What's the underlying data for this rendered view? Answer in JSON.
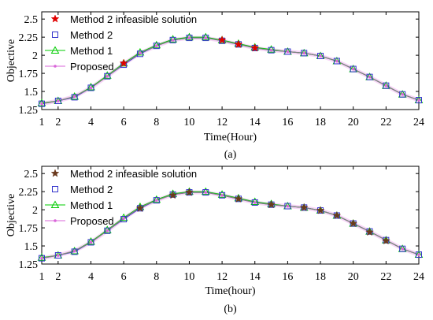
{
  "colors": {
    "method2_infeasible_top": "#e00000",
    "method2_infeasible_bottom": "#6b3a1e",
    "method2": "#3333cc",
    "method1": "#00cc00",
    "proposed": "#d966d9",
    "proposed_band": "#f3c4f3"
  },
  "chart_data": [
    {
      "type": "line",
      "caption": "(a)",
      "xlabel": "Time(Hour)",
      "ylabel": "Objective",
      "xlim": [
        1,
        24
      ],
      "ylim": [
        1.25,
        2.6
      ],
      "xticks": [
        1,
        2,
        4,
        6,
        8,
        10,
        12,
        14,
        16,
        18,
        20,
        22,
        24
      ],
      "xtick_labels": [
        "1",
        "2",
        "4",
        "6",
        "8",
        "10",
        "12",
        "14",
        "16",
        "18",
        "20",
        "22",
        "24"
      ],
      "yticks": [
        1.25,
        1.5,
        1.75,
        2,
        2.25,
        2.5
      ],
      "ytick_labels": [
        "1.25",
        "1.5",
        "1.75",
        "2",
        "2.25",
        "2.5"
      ],
      "grid": false,
      "legend_position": "top-left",
      "x": [
        1,
        2,
        3,
        4,
        5,
        6,
        7,
        8,
        9,
        10,
        11,
        12,
        13,
        14,
        15,
        16,
        17,
        18,
        19,
        20,
        21,
        22,
        23,
        24
      ],
      "series": [
        {
          "name": "Method 2 infeasible solution",
          "marker": "star",
          "color_key": "method2_infeasible_top",
          "points": [
            [
              6,
              1.89
            ],
            [
              12,
              2.21
            ],
            [
              13,
              2.15
            ],
            [
              14,
              2.1
            ]
          ]
        },
        {
          "name": "Method 2",
          "marker": "square",
          "color_key": "method2",
          "values": [
            1.33,
            1.37,
            1.42,
            1.55,
            1.71,
            1.87,
            2.02,
            2.13,
            2.21,
            2.24,
            2.24,
            2.2,
            2.15,
            2.1,
            2.07,
            2.05,
            2.03,
            1.99,
            1.92,
            1.81,
            1.7,
            1.58,
            1.46,
            1.38
          ]
        },
        {
          "name": "Method 1",
          "marker": "triangle",
          "color_key": "method1",
          "values": [
            1.34,
            1.37,
            1.43,
            1.56,
            1.72,
            1.89,
            2.04,
            2.14,
            2.22,
            2.25,
            2.25,
            2.21,
            2.16,
            2.11,
            2.08,
            2.05,
            2.03,
            1.99,
            1.92,
            1.81,
            1.7,
            1.58,
            1.46,
            1.38
          ]
        },
        {
          "name": "Proposed",
          "marker": "dot",
          "color_key": "proposed",
          "values": [
            1.33,
            1.37,
            1.43,
            1.55,
            1.71,
            1.88,
            2.03,
            2.13,
            2.21,
            2.24,
            2.24,
            2.2,
            2.15,
            2.1,
            2.07,
            2.05,
            2.03,
            1.99,
            1.92,
            1.81,
            1.7,
            1.58,
            1.46,
            1.38
          ]
        }
      ]
    },
    {
      "type": "line",
      "caption": "(b)",
      "xlabel": "Time(hour)",
      "ylabel": "Objective",
      "xlim": [
        1,
        24
      ],
      "ylim": [
        1.25,
        2.6
      ],
      "xticks": [
        1,
        2,
        4,
        6,
        8,
        10,
        12,
        14,
        16,
        18,
        20,
        22,
        24
      ],
      "xtick_labels": [
        "1",
        "2",
        "4",
        "6",
        "8",
        "10",
        "12",
        "14",
        "16",
        "18",
        "20",
        "22",
        "24"
      ],
      "yticks": [
        1.25,
        1.5,
        1.75,
        2,
        2.25,
        2.5
      ],
      "ytick_labels": [
        "1.25",
        "1.5",
        "1.75",
        "2",
        "2.25",
        "2.5"
      ],
      "grid": false,
      "legend_position": "top-left",
      "x": [
        1,
        2,
        3,
        4,
        5,
        6,
        7,
        8,
        9,
        10,
        11,
        12,
        13,
        14,
        15,
        16,
        17,
        18,
        19,
        20,
        21,
        22,
        23,
        24
      ],
      "series": [
        {
          "name": "Method 2 infeasible solution",
          "marker": "star",
          "color_key": "method2_infeasible_bottom",
          "points": [
            [
              7,
              2.02
            ],
            [
              9,
              2.2
            ],
            [
              10,
              2.24
            ],
            [
              13,
              2.15
            ],
            [
              15,
              2.07
            ],
            [
              17,
              2.03
            ],
            [
              18,
              1.99
            ],
            [
              19,
              1.92
            ],
            [
              20,
              1.81
            ],
            [
              21,
              1.69
            ],
            [
              22,
              1.57
            ]
          ]
        },
        {
          "name": "Method 2",
          "marker": "square",
          "color_key": "method2",
          "values": [
            1.33,
            1.37,
            1.42,
            1.55,
            1.71,
            1.87,
            2.02,
            2.13,
            2.21,
            2.24,
            2.24,
            2.2,
            2.15,
            2.1,
            2.07,
            2.05,
            2.03,
            1.99,
            1.92,
            1.81,
            1.7,
            1.58,
            1.46,
            1.38
          ]
        },
        {
          "name": "Method 1",
          "marker": "triangle",
          "color_key": "method1",
          "values": [
            1.34,
            1.37,
            1.43,
            1.56,
            1.72,
            1.89,
            2.04,
            2.14,
            2.22,
            2.25,
            2.25,
            2.21,
            2.16,
            2.11,
            2.08,
            2.05,
            2.03,
            1.99,
            1.92,
            1.81,
            1.7,
            1.58,
            1.46,
            1.38
          ]
        },
        {
          "name": "Proposed",
          "marker": "dot",
          "color_key": "proposed",
          "values": [
            1.33,
            1.37,
            1.43,
            1.55,
            1.71,
            1.88,
            2.03,
            2.13,
            2.21,
            2.24,
            2.24,
            2.2,
            2.15,
            2.1,
            2.07,
            2.05,
            2.03,
            1.99,
            1.92,
            1.81,
            1.7,
            1.58,
            1.46,
            1.38
          ]
        }
      ]
    }
  ]
}
